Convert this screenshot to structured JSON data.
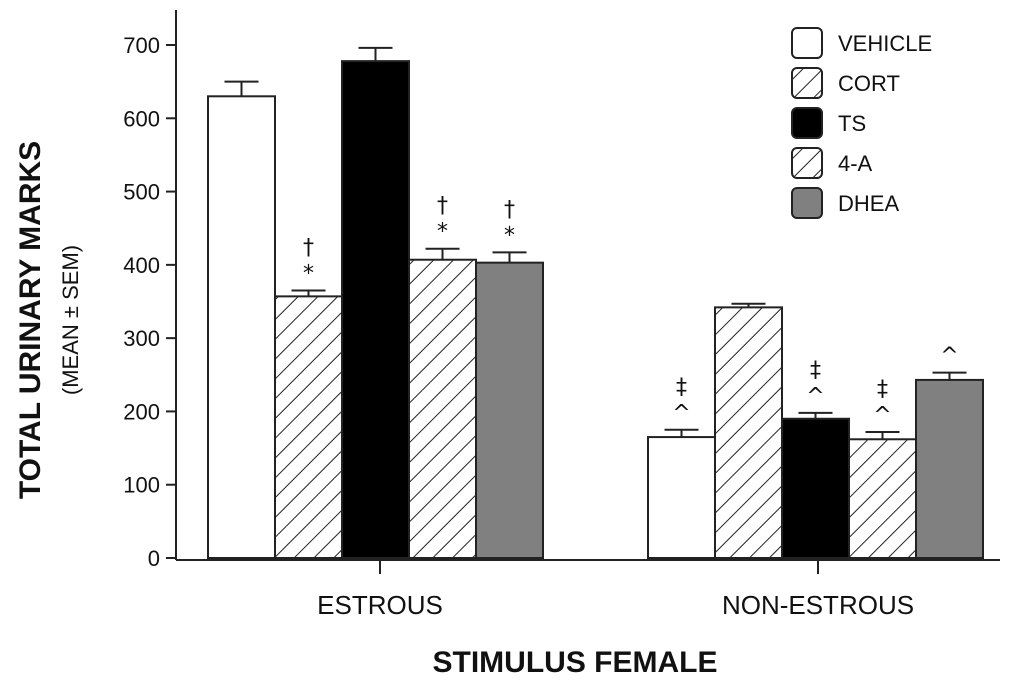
{
  "chart_data": {
    "type": "bar",
    "ylabel": "TOTAL URINARY MARKS",
    "ylabel_sub": "(MEAN ± SEM)",
    "xlabel": "STIMULUS FEMALE",
    "categories": [
      "ESTROUS",
      "NON-ESTROUS"
    ],
    "ylim": [
      0,
      750
    ],
    "yticks": [
      "0",
      "100",
      "200",
      "300",
      "400",
      "500",
      "600",
      "700"
    ],
    "grid": false,
    "legend_position": "top-right",
    "series": [
      {
        "name": "VEHICLE",
        "fill": "white",
        "values": [
          630,
          165
        ],
        "errors": [
          20,
          10
        ],
        "marks": [
          [],
          [
            "‡",
            "^"
          ]
        ]
      },
      {
        "name": "CORT",
        "fill": "hatch",
        "values": [
          357,
          342
        ],
        "errors": [
          8,
          5
        ],
        "marks": [
          [
            "†",
            "*"
          ],
          []
        ]
      },
      {
        "name": "TS",
        "fill": "black",
        "values": [
          678,
          190
        ],
        "errors": [
          18,
          8
        ],
        "marks": [
          [],
          [
            "‡",
            "^"
          ]
        ]
      },
      {
        "name": "4-A",
        "fill": "hatch",
        "values": [
          407,
          162
        ],
        "errors": [
          15,
          10
        ],
        "marks": [
          [
            "†",
            "*"
          ],
          [
            "‡",
            "^"
          ]
        ]
      },
      {
        "name": "DHEA",
        "fill": "gray",
        "values": [
          403,
          243
        ],
        "errors": [
          14,
          10
        ],
        "marks": [
          [
            "†",
            "*"
          ],
          [
            "^"
          ]
        ]
      }
    ],
    "colors": {
      "white": "#ffffff",
      "black": "#000000",
      "gray": "#808080",
      "stroke": "#222222"
    }
  }
}
